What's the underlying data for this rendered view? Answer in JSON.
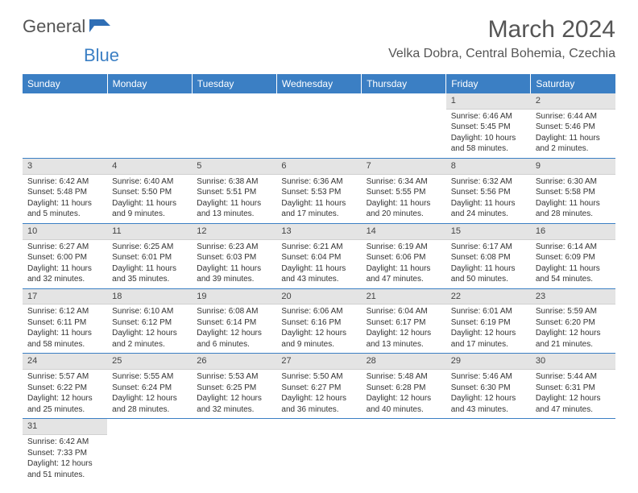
{
  "brand": {
    "part1": "General",
    "part2": "Blue"
  },
  "title": "March 2024",
  "location": "Velka Dobra, Central Bohemia, Czechia",
  "colors": {
    "header_bg": "#3b7fc4",
    "header_fg": "#ffffff",
    "daynum_bg": "#e4e4e4",
    "rule": "#3b7fc4"
  },
  "weekdays": [
    "Sunday",
    "Monday",
    "Tuesday",
    "Wednesday",
    "Thursday",
    "Friday",
    "Saturday"
  ],
  "weeks": [
    [
      null,
      null,
      null,
      null,
      null,
      {
        "n": "1",
        "sr": "Sunrise: 6:46 AM",
        "ss": "Sunset: 5:45 PM",
        "dl": "Daylight: 10 hours and 58 minutes."
      },
      {
        "n": "2",
        "sr": "Sunrise: 6:44 AM",
        "ss": "Sunset: 5:46 PM",
        "dl": "Daylight: 11 hours and 2 minutes."
      }
    ],
    [
      {
        "n": "3",
        "sr": "Sunrise: 6:42 AM",
        "ss": "Sunset: 5:48 PM",
        "dl": "Daylight: 11 hours and 5 minutes."
      },
      {
        "n": "4",
        "sr": "Sunrise: 6:40 AM",
        "ss": "Sunset: 5:50 PM",
        "dl": "Daylight: 11 hours and 9 minutes."
      },
      {
        "n": "5",
        "sr": "Sunrise: 6:38 AM",
        "ss": "Sunset: 5:51 PM",
        "dl": "Daylight: 11 hours and 13 minutes."
      },
      {
        "n": "6",
        "sr": "Sunrise: 6:36 AM",
        "ss": "Sunset: 5:53 PM",
        "dl": "Daylight: 11 hours and 17 minutes."
      },
      {
        "n": "7",
        "sr": "Sunrise: 6:34 AM",
        "ss": "Sunset: 5:55 PM",
        "dl": "Daylight: 11 hours and 20 minutes."
      },
      {
        "n": "8",
        "sr": "Sunrise: 6:32 AM",
        "ss": "Sunset: 5:56 PM",
        "dl": "Daylight: 11 hours and 24 minutes."
      },
      {
        "n": "9",
        "sr": "Sunrise: 6:30 AM",
        "ss": "Sunset: 5:58 PM",
        "dl": "Daylight: 11 hours and 28 minutes."
      }
    ],
    [
      {
        "n": "10",
        "sr": "Sunrise: 6:27 AM",
        "ss": "Sunset: 6:00 PM",
        "dl": "Daylight: 11 hours and 32 minutes."
      },
      {
        "n": "11",
        "sr": "Sunrise: 6:25 AM",
        "ss": "Sunset: 6:01 PM",
        "dl": "Daylight: 11 hours and 35 minutes."
      },
      {
        "n": "12",
        "sr": "Sunrise: 6:23 AM",
        "ss": "Sunset: 6:03 PM",
        "dl": "Daylight: 11 hours and 39 minutes."
      },
      {
        "n": "13",
        "sr": "Sunrise: 6:21 AM",
        "ss": "Sunset: 6:04 PM",
        "dl": "Daylight: 11 hours and 43 minutes."
      },
      {
        "n": "14",
        "sr": "Sunrise: 6:19 AM",
        "ss": "Sunset: 6:06 PM",
        "dl": "Daylight: 11 hours and 47 minutes."
      },
      {
        "n": "15",
        "sr": "Sunrise: 6:17 AM",
        "ss": "Sunset: 6:08 PM",
        "dl": "Daylight: 11 hours and 50 minutes."
      },
      {
        "n": "16",
        "sr": "Sunrise: 6:14 AM",
        "ss": "Sunset: 6:09 PM",
        "dl": "Daylight: 11 hours and 54 minutes."
      }
    ],
    [
      {
        "n": "17",
        "sr": "Sunrise: 6:12 AM",
        "ss": "Sunset: 6:11 PM",
        "dl": "Daylight: 11 hours and 58 minutes."
      },
      {
        "n": "18",
        "sr": "Sunrise: 6:10 AM",
        "ss": "Sunset: 6:12 PM",
        "dl": "Daylight: 12 hours and 2 minutes."
      },
      {
        "n": "19",
        "sr": "Sunrise: 6:08 AM",
        "ss": "Sunset: 6:14 PM",
        "dl": "Daylight: 12 hours and 6 minutes."
      },
      {
        "n": "20",
        "sr": "Sunrise: 6:06 AM",
        "ss": "Sunset: 6:16 PM",
        "dl": "Daylight: 12 hours and 9 minutes."
      },
      {
        "n": "21",
        "sr": "Sunrise: 6:04 AM",
        "ss": "Sunset: 6:17 PM",
        "dl": "Daylight: 12 hours and 13 minutes."
      },
      {
        "n": "22",
        "sr": "Sunrise: 6:01 AM",
        "ss": "Sunset: 6:19 PM",
        "dl": "Daylight: 12 hours and 17 minutes."
      },
      {
        "n": "23",
        "sr": "Sunrise: 5:59 AM",
        "ss": "Sunset: 6:20 PM",
        "dl": "Daylight: 12 hours and 21 minutes."
      }
    ],
    [
      {
        "n": "24",
        "sr": "Sunrise: 5:57 AM",
        "ss": "Sunset: 6:22 PM",
        "dl": "Daylight: 12 hours and 25 minutes."
      },
      {
        "n": "25",
        "sr": "Sunrise: 5:55 AM",
        "ss": "Sunset: 6:24 PM",
        "dl": "Daylight: 12 hours and 28 minutes."
      },
      {
        "n": "26",
        "sr": "Sunrise: 5:53 AM",
        "ss": "Sunset: 6:25 PM",
        "dl": "Daylight: 12 hours and 32 minutes."
      },
      {
        "n": "27",
        "sr": "Sunrise: 5:50 AM",
        "ss": "Sunset: 6:27 PM",
        "dl": "Daylight: 12 hours and 36 minutes."
      },
      {
        "n": "28",
        "sr": "Sunrise: 5:48 AM",
        "ss": "Sunset: 6:28 PM",
        "dl": "Daylight: 12 hours and 40 minutes."
      },
      {
        "n": "29",
        "sr": "Sunrise: 5:46 AM",
        "ss": "Sunset: 6:30 PM",
        "dl": "Daylight: 12 hours and 43 minutes."
      },
      {
        "n": "30",
        "sr": "Sunrise: 5:44 AM",
        "ss": "Sunset: 6:31 PM",
        "dl": "Daylight: 12 hours and 47 minutes."
      }
    ],
    [
      {
        "n": "31",
        "sr": "Sunrise: 6:42 AM",
        "ss": "Sunset: 7:33 PM",
        "dl": "Daylight: 12 hours and 51 minutes."
      },
      null,
      null,
      null,
      null,
      null,
      null
    ]
  ]
}
